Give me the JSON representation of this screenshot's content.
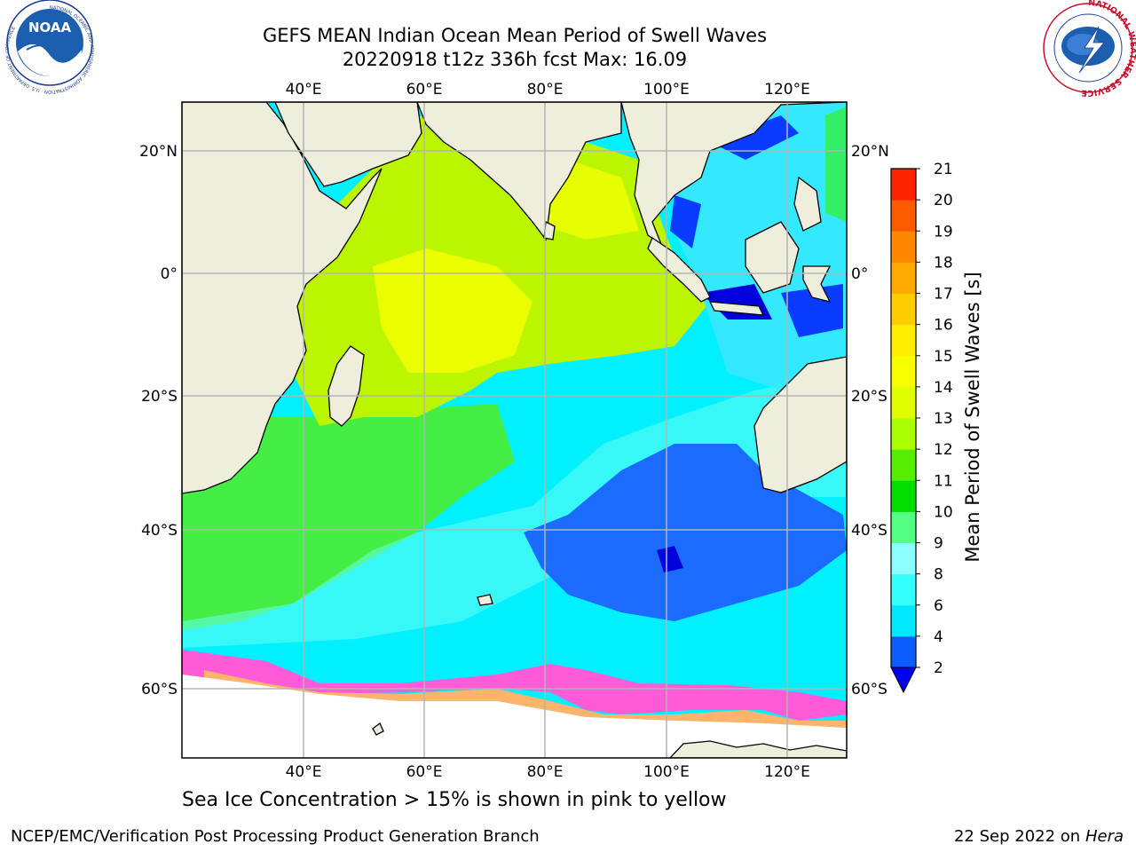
{
  "title_line1": "GEFS MEAN Indian Ocean Mean Period of Swell Waves",
  "title_line2": "20220918 t12z 336h fcst   Max: 16.09",
  "lon_labels": [
    "40°E",
    "60°E",
    "80°E",
    "100°E",
    "120°E"
  ],
  "lat_labels": [
    "20°N",
    "0°",
    "20°S",
    "40°S",
    "60°S"
  ],
  "colorbar": {
    "label": "Mean Period of Swell Waves [s]",
    "ticks": [
      "2",
      "4",
      "6",
      "8",
      "9",
      "10",
      "11",
      "12",
      "13",
      "14",
      "15",
      "16",
      "17",
      "18",
      "19",
      "20",
      "21"
    ],
    "colors": [
      "#0c5bff",
      "#00e8ff",
      "#33ffff",
      "#8cffff",
      "#55ff80",
      "#00dd00",
      "#55ee00",
      "#aaff00",
      "#dfff00",
      "#f6ff00",
      "#ffee00",
      "#ffcc00",
      "#ffaa00",
      "#ff8800",
      "#ff5a00",
      "#ff2200"
    ],
    "under_color": "#0000ee"
  },
  "footer_note": "Sea Ice Concentration > 15% is shown in pink to yellow",
  "credit": "NCEP/EMC/Verification Post Processing Product Generation Branch",
  "date_text": "22 Sep 2022 on",
  "date_host": "Hera",
  "logos": {
    "noaa": {
      "center": "NOAA",
      "ring": "NATIONAL OCEANIC AND ATMOSPHERIC ADMINISTRATION · U.S. DEPARTMENT OF COMMERCE"
    },
    "nws": {
      "ring": "NATIONAL WEATHER SERVICE"
    }
  }
}
